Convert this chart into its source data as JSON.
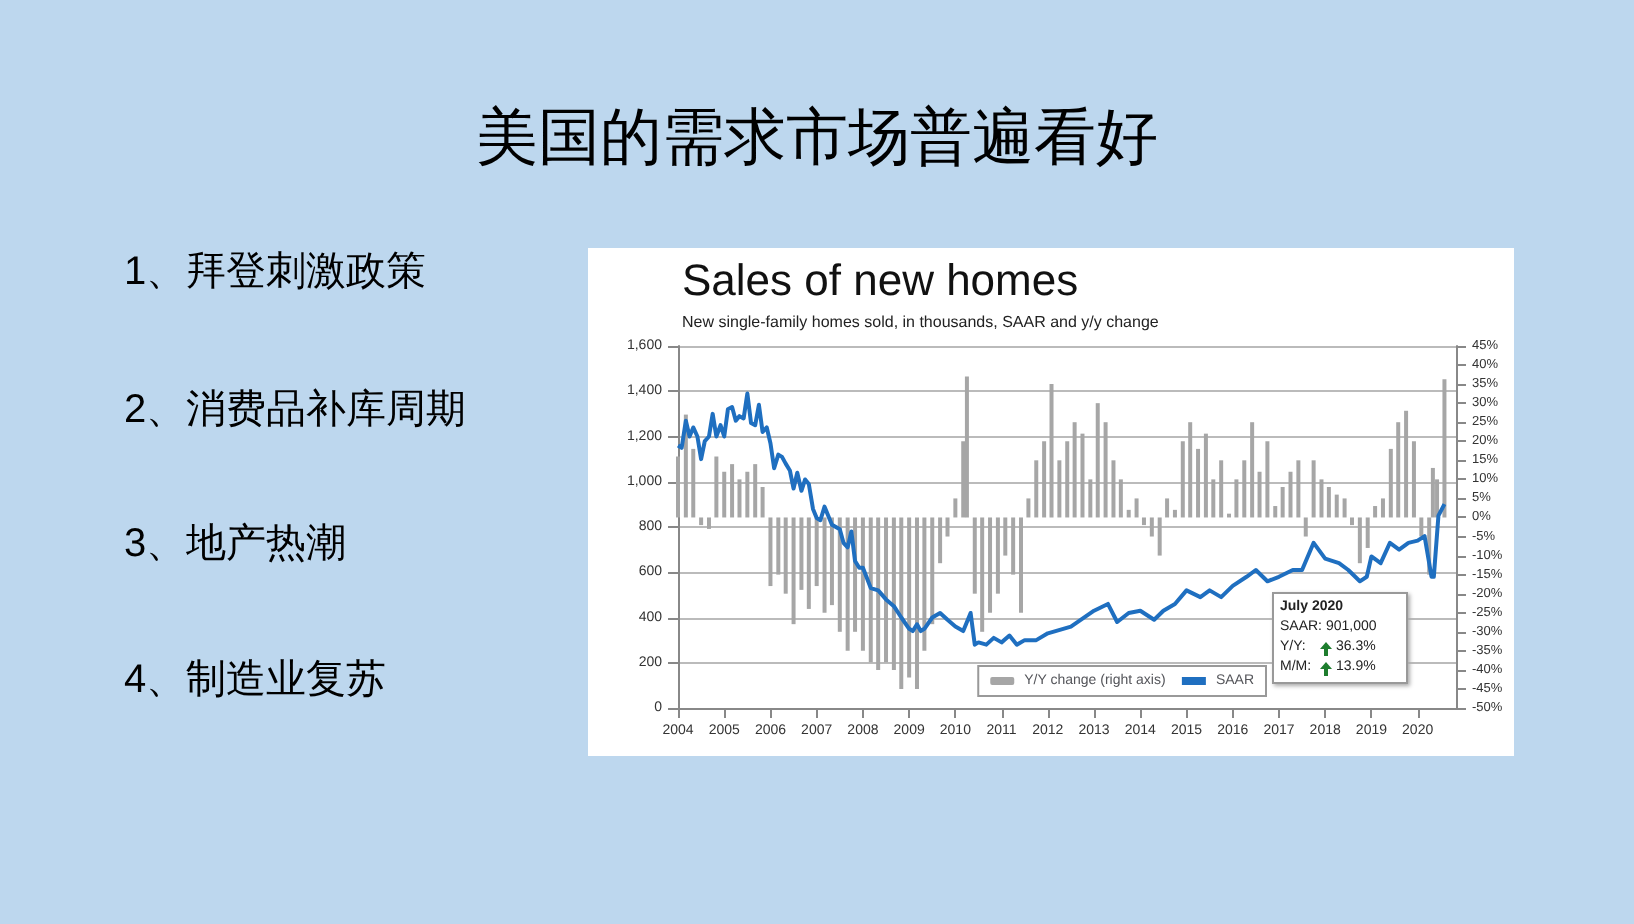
{
  "chart_data": {
    "type": "line",
    "title": "Sales of new homes",
    "subtitle": "New single-family homes sold, in thousands, SAAR and y/y change",
    "annotations": [
      "美国的需求市场普遍看好",
      "1、拜登刺激政策",
      "2、消费品补库周期",
      "3、地产热潮",
      "4、制造业复苏",
      "July 2020",
      "SAAR: 901,000",
      "Y/Y:",
      "36.3%",
      "M/M:",
      "13.9%"
    ],
    "xlim": [
      2004,
      2020.83
    ],
    "xticks": [
      2004,
      2005,
      2006,
      2007,
      2008,
      2009,
      2010,
      2011,
      2012,
      2013,
      2014,
      2015,
      2016,
      2017,
      2018,
      2019,
      2020
    ],
    "ylim": [
      0,
      1600
    ],
    "yticks": [
      0,
      200,
      400,
      600,
      800,
      {
        "value": 1000,
        "label": "1,000"
      },
      {
        "value": 1200,
        "label": "1,200"
      },
      {
        "value": 1400,
        "label": "1,400"
      },
      {
        "value": 1600,
        "label": "1,600"
      }
    ],
    "y2lim": [
      -50,
      45
    ],
    "y2ticks": [
      {
        "value": -50,
        "label": "-50%"
      },
      {
        "value": -45,
        "label": "-45%"
      },
      {
        "value": -40,
        "label": "-40%"
      },
      {
        "value": -35,
        "label": "-35%"
      },
      {
        "value": -30,
        "label": "-30%"
      },
      {
        "value": -25,
        "label": "-25%"
      },
      {
        "value": -20,
        "label": "-20%"
      },
      {
        "value": -15,
        "label": "-15%"
      },
      {
        "value": -10,
        "label": "-10%"
      },
      {
        "value": -5,
        "label": "-5%"
      },
      {
        "value": 0,
        "label": "0%"
      },
      {
        "value": 5,
        "label": "5%"
      },
      {
        "value": 10,
        "label": "10%"
      },
      {
        "value": 15,
        "label": "15%"
      },
      {
        "value": 20,
        "label": "20%"
      },
      {
        "value": 25,
        "label": "25%"
      },
      {
        "value": 30,
        "label": "30%"
      },
      {
        "value": 35,
        "label": "35%"
      },
      {
        "value": 40,
        "label": "40%"
      },
      {
        "value": 45,
        "label": "45%"
      }
    ],
    "grid": "y",
    "legend": "bottom right",
    "marker": "none",
    "series": [
      {
        "name": "Y/Y change (right axis)",
        "type": "bar",
        "axis": "y2",
        "color": "#a6a6a6",
        "x": [
          2004,
          2004.17,
          2004.33,
          2004.5,
          2004.67,
          2004.83,
          2005,
          2005.17,
          2005.33,
          2005.5,
          2005.67,
          2005.83,
          2006,
          2006.17,
          2006.33,
          2006.5,
          2006.67,
          2006.83,
          2007,
          2007.17,
          2007.33,
          2007.5,
          2007.67,
          2007.83,
          2008,
          2008.17,
          2008.33,
          2008.5,
          2008.67,
          2008.83,
          2009,
          2009.17,
          2009.33,
          2009.5,
          2009.67,
          2009.83,
          2010,
          2010.17,
          2010.25,
          2010.42,
          2010.58,
          2010.75,
          2010.92,
          2011.08,
          2011.25,
          2011.42,
          2011.58,
          2011.75,
          2011.92,
          2012.08,
          2012.25,
          2012.42,
          2012.58,
          2012.75,
          2012.92,
          2013.08,
          2013.25,
          2013.42,
          2013.58,
          2013.75,
          2013.92,
          2014.08,
          2014.25,
          2014.42,
          2014.58,
          2014.75,
          2014.92,
          2015.08,
          2015.25,
          2015.42,
          2015.58,
          2015.75,
          2015.92,
          2016.08,
          2016.25,
          2016.42,
          2016.58,
          2016.75,
          2016.92,
          2017.08,
          2017.25,
          2017.42,
          2017.58,
          2017.75,
          2017.92,
          2018.08,
          2018.25,
          2018.42,
          2018.58,
          2018.75,
          2018.92,
          2019.08,
          2019.25,
          2019.42,
          2019.58,
          2019.75,
          2019.92,
          2020.08,
          2020.25,
          2020.33,
          2020.42,
          2020.58
        ],
        "values": [
          16,
          27,
          18,
          -2,
          -3,
          16,
          12,
          14,
          10,
          12,
          14,
          8,
          -18,
          -15,
          -20,
          -28,
          -19,
          -24,
          -18,
          -25,
          -23,
          -30,
          -35,
          -30,
          -35,
          -38,
          -40,
          -38,
          -40,
          -45,
          -42,
          -45,
          -35,
          -28,
          -12,
          -5,
          5,
          20,
          37,
          -20,
          -30,
          -25,
          -20,
          -10,
          -15,
          -25,
          5,
          15,
          20,
          35,
          15,
          20,
          25,
          22,
          10,
          30,
          25,
          15,
          10,
          2,
          5,
          -2,
          -5,
          -10,
          5,
          2,
          20,
          25,
          18,
          22,
          10,
          15,
          1,
          10,
          15,
          25,
          12,
          20,
          3,
          8,
          12,
          15,
          -5,
          15,
          10,
          8,
          6,
          5,
          -2,
          -12,
          -8,
          3,
          5,
          18,
          25,
          28,
          20,
          -5,
          -15,
          13,
          10,
          36.3
        ]
      },
      {
        "name": "SAAR",
        "color": "#1f6fc0",
        "x": [
          2004,
          2004.08,
          2004.17,
          2004.25,
          2004.33,
          2004.42,
          2004.5,
          2004.58,
          2004.67,
          2004.75,
          2004.83,
          2004.92,
          2005,
          2005.08,
          2005.17,
          2005.25,
          2005.33,
          2005.42,
          2005.5,
          2005.58,
          2005.67,
          2005.75,
          2005.83,
          2005.92,
          2006,
          2006.08,
          2006.17,
          2006.25,
          2006.33,
          2006.42,
          2006.5,
          2006.58,
          2006.67,
          2006.75,
          2006.83,
          2006.92,
          2007,
          2007.08,
          2007.17,
          2007.25,
          2007.33,
          2007.5,
          2007.58,
          2007.67,
          2007.75,
          2007.83,
          2007.92,
          2008,
          2008.17,
          2008.33,
          2008.5,
          2008.67,
          2008.83,
          2009,
          2009.08,
          2009.17,
          2009.25,
          2009.33,
          2009.5,
          2009.67,
          2009.83,
          2010,
          2010.17,
          2010.33,
          2010.42,
          2010.5,
          2010.67,
          2010.83,
          2011,
          2011.17,
          2011.33,
          2011.5,
          2011.75,
          2012,
          2012.5,
          2013,
          2013.3,
          2013.5,
          2013.75,
          2014,
          2014.3,
          2014.5,
          2014.75,
          2015,
          2015.3,
          2015.5,
          2015.75,
          2016,
          2016.3,
          2016.5,
          2016.75,
          2017,
          2017.3,
          2017.5,
          2017.75,
          2018,
          2018.3,
          2018.5,
          2018.75,
          2018.9,
          2019,
          2019.2,
          2019.4,
          2019.6,
          2019.8,
          2020,
          2020.15,
          2020.3,
          2020.35,
          2020.45,
          2020.58
        ],
        "values": [
          1160,
          1150,
          1270,
          1200,
          1240,
          1200,
          1100,
          1180,
          1200,
          1300,
          1200,
          1250,
          1200,
          1320,
          1330,
          1270,
          1290,
          1280,
          1390,
          1260,
          1250,
          1340,
          1220,
          1240,
          1170,
          1060,
          1120,
          1110,
          1080,
          1050,
          970,
          1040,
          960,
          1010,
          990,
          880,
          840,
          830,
          890,
          850,
          810,
          790,
          730,
          710,
          780,
          650,
          620,
          620,
          530,
          520,
          480,
          450,
          400,
          350,
          340,
          370,
          340,
          350,
          400,
          420,
          390,
          360,
          340,
          420,
          280,
          290,
          280,
          310,
          290,
          320,
          280,
          300,
          300,
          330,
          360,
          430,
          460,
          380,
          420,
          430,
          390,
          430,
          460,
          520,
          490,
          520,
          490,
          540,
          580,
          610,
          560,
          580,
          610,
          610,
          730,
          660,
          640,
          610,
          560,
          580,
          670,
          640,
          730,
          700,
          730,
          740,
          760,
          580,
          580,
          850,
          901
        ]
      }
    ]
  }
}
